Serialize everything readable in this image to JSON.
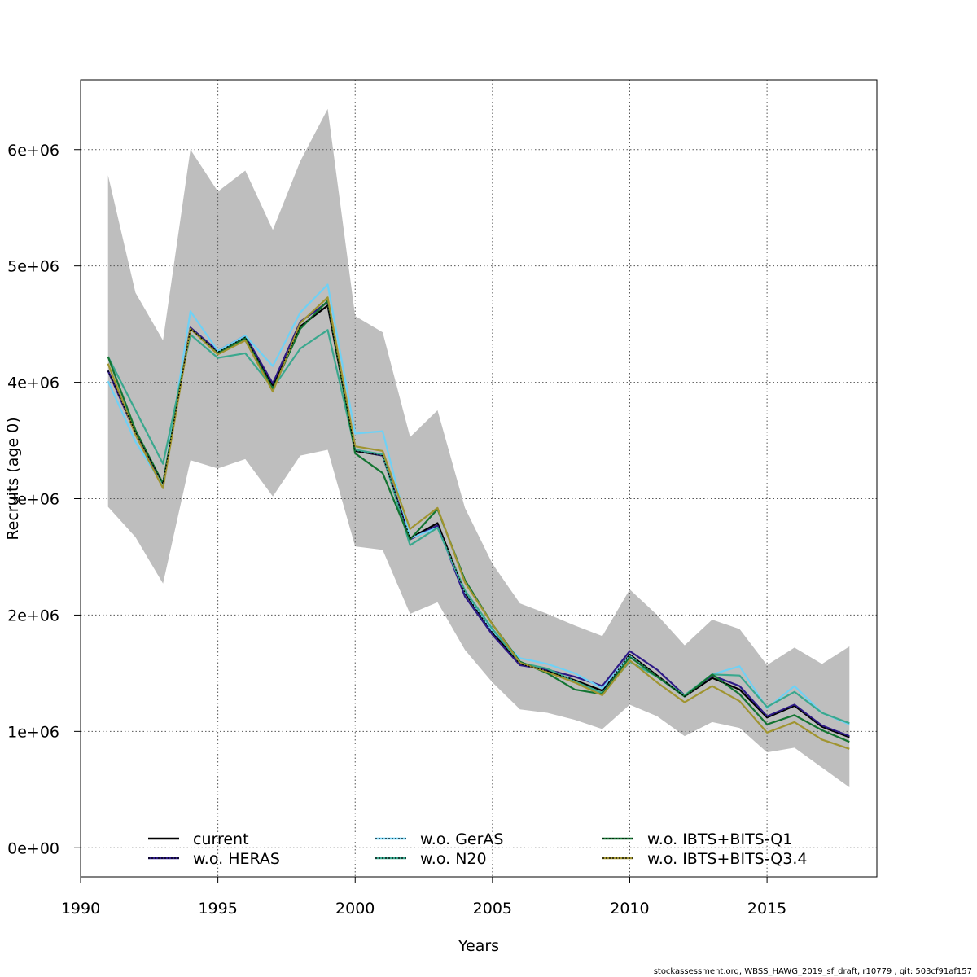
{
  "chart_data": {
    "type": "line",
    "xlabel": "Years",
    "ylabel": "Recruits (age 0)",
    "xlim": [
      1990,
      2019
    ],
    "ylim": [
      -250000,
      6600000
    ],
    "x_ticks": [
      1990,
      1995,
      2000,
      2005,
      2010,
      2015
    ],
    "x_tick_labels": [
      "1990",
      "1995",
      "2000",
      "2005",
      "2010",
      "2015"
    ],
    "y_ticks": [
      0,
      1000000,
      2000000,
      3000000,
      4000000,
      5000000,
      6000000
    ],
    "y_tick_labels": [
      "0e+00",
      "1e+06",
      "2e+06",
      "3e+06",
      "4e+06",
      "5e+06",
      "6e+06"
    ],
    "grid": true,
    "legend_position": "bottom",
    "footer": "stockassessment.org, WBSS_HAWG_2019_sf_draft, r10779 , git: 503cf91af157",
    "x": [
      1991,
      1992,
      1993,
      1994,
      1995,
      1996,
      1997,
      1998,
      1999,
      2000,
      2001,
      2002,
      2003,
      2004,
      2005,
      2006,
      2007,
      2008,
      2009,
      2010,
      2011,
      2012,
      2013,
      2014,
      2015,
      2016,
      2017,
      2018
    ],
    "confidence_band": {
      "color": "#bebebe",
      "upper": [
        5780000,
        4770000,
        4360000,
        6000000,
        5640000,
        5820000,
        5310000,
        5900000,
        6350000,
        4570000,
        4430000,
        3530000,
        3760000,
        2920000,
        2440000,
        2100000,
        2010000,
        1910000,
        1820000,
        2220000,
        2000000,
        1740000,
        1960000,
        1880000,
        1570000,
        1720000,
        1580000,
        1730000
      ],
      "lower": [
        2930000,
        2670000,
        2270000,
        3330000,
        3260000,
        3340000,
        3020000,
        3370000,
        3420000,
        2590000,
        2560000,
        2010000,
        2110000,
        1700000,
        1420000,
        1190000,
        1160000,
        1100000,
        1020000,
        1230000,
        1130000,
        960000,
        1080000,
        1030000,
        820000,
        860000,
        690000,
        520000
      ]
    },
    "series": [
      {
        "name": "current",
        "color": "#000000",
        "dash": "solid",
        "values": [
          4100000,
          3570000,
          3130000,
          4460000,
          4260000,
          4390000,
          3970000,
          4480000,
          4660000,
          3410000,
          3370000,
          2660000,
          2790000,
          2190000,
          1850000,
          1580000,
          1520000,
          1440000,
          1350000,
          1660000,
          1480000,
          1300000,
          1460000,
          1360000,
          1120000,
          1220000,
          1040000,
          950000
        ]
      },
      {
        "name": "w.o. HERAS",
        "color": "#2e1a87",
        "dash": "solid",
        "values": [
          4100000,
          3560000,
          3120000,
          4470000,
          4270000,
          4400000,
          3990000,
          4520000,
          4690000,
          3420000,
          3370000,
          2650000,
          2770000,
          2160000,
          1830000,
          1570000,
          1530000,
          1470000,
          1390000,
          1690000,
          1530000,
          1310000,
          1480000,
          1390000,
          1130000,
          1230000,
          1050000,
          960000
        ]
      },
      {
        "name": "w.o. GerAS",
        "color": "#6fd1f5",
        "dash": "solid",
        "values": [
          4010000,
          3490000,
          3110000,
          4610000,
          4270000,
          4400000,
          4140000,
          4600000,
          4840000,
          3560000,
          3580000,
          2660000,
          2750000,
          2200000,
          1860000,
          1630000,
          1580000,
          1500000,
          1370000,
          1650000,
          1470000,
          1300000,
          1490000,
          1560000,
          1200000,
          1390000,
          1160000,
          1060000
        ]
      },
      {
        "name": "w.o. N20",
        "color": "#3aa88e",
        "dash": "solid",
        "values": [
          4220000,
          3760000,
          3300000,
          4410000,
          4210000,
          4250000,
          3950000,
          4290000,
          4450000,
          3420000,
          3380000,
          2600000,
          2750000,
          2210000,
          1880000,
          1590000,
          1540000,
          1430000,
          1330000,
          1600000,
          1470000,
          1310000,
          1490000,
          1480000,
          1210000,
          1340000,
          1160000,
          1070000
        ]
      },
      {
        "name": "w.o. IBTS+BITS-Q1",
        "color": "#127431",
        "dash": "solid",
        "values": [
          4220000,
          3590000,
          3130000,
          4460000,
          4250000,
          4380000,
          3940000,
          4460000,
          4700000,
          3390000,
          3220000,
          2650000,
          2910000,
          2300000,
          1920000,
          1600000,
          1500000,
          1360000,
          1320000,
          1640000,
          1470000,
          1300000,
          1490000,
          1320000,
          1060000,
          1140000,
          1010000,
          910000
        ]
      },
      {
        "name": "w.o. IBTS+BITS-Q3.4",
        "color": "#a09430",
        "dash": "solid",
        "values": [
          4160000,
          3550000,
          3090000,
          4460000,
          4240000,
          4360000,
          3920000,
          4510000,
          4730000,
          3450000,
          3410000,
          2740000,
          2920000,
          2280000,
          1920000,
          1590000,
          1510000,
          1420000,
          1310000,
          1610000,
          1420000,
          1250000,
          1390000,
          1260000,
          990000,
          1080000,
          930000,
          850000
        ]
      }
    ]
  }
}
